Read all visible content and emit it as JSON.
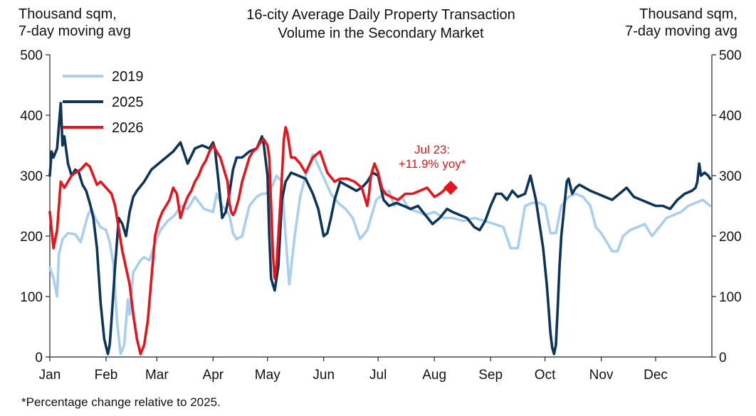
{
  "chart_data": {
    "type": "line",
    "title": "16-city Average Daily Property Transaction\nVolume in the Secondary Market",
    "ylabel_left": "Thousand sqm,\n7-day moving avg",
    "ylabel_right": "Thousand sqm,\n7-day moving avg",
    "ylim": [
      0,
      500
    ],
    "yticks": [
      0,
      100,
      200,
      300,
      400,
      500
    ],
    "xlim": [
      0,
      365
    ],
    "xticks": [
      {
        "label": "Jan",
        "day": 0
      },
      {
        "label": "Feb",
        "day": 31
      },
      {
        "label": "Mar",
        "day": 59
      },
      {
        "label": "Apr",
        "day": 90
      },
      {
        "label": "May",
        "day": 120
      },
      {
        "label": "Jun",
        "day": 151
      },
      {
        "label": "Jul",
        "day": 181
      },
      {
        "label": "Aug",
        "day": 212
      },
      {
        "label": "Sep",
        "day": 243
      },
      {
        "label": "Oct",
        "day": 273
      },
      {
        "label": "Nov",
        "day": 304
      },
      {
        "label": "Dec",
        "day": 334
      }
    ],
    "legend_position": "top-left",
    "grid": false,
    "series": [
      {
        "name": "2019",
        "color": "#a9cfee",
        "x": [
          0,
          2,
          4,
          5,
          7,
          10,
          14,
          17,
          21,
          23,
          25,
          28,
          31,
          33,
          35,
          37,
          39,
          41,
          43,
          44,
          46,
          50,
          52,
          55,
          58,
          61,
          65,
          69,
          72,
          76,
          80,
          85,
          90,
          92,
          95,
          99,
          101,
          103,
          106,
          110,
          114,
          117,
          119,
          121,
          123,
          125,
          128,
          130,
          132,
          135,
          138,
          141,
          145,
          149,
          152,
          155,
          159,
          163,
          167,
          171,
          175,
          180,
          184,
          187,
          190,
          194,
          198,
          203,
          207,
          212,
          217,
          222,
          228,
          234,
          240,
          245,
          250,
          254,
          258,
          262,
          266,
          270,
          273,
          276,
          279,
          282,
          286,
          290,
          294,
          298,
          301,
          304,
          307,
          310,
          313,
          316,
          320,
          324,
          328,
          332,
          336,
          340,
          344,
          348,
          352,
          356,
          360,
          364
        ],
        "y": [
          148,
          130,
          100,
          170,
          195,
          205,
          203,
          190,
          235,
          245,
          230,
          215,
          210,
          190,
          155,
          60,
          5,
          20,
          95,
          70,
          140,
          160,
          165,
          160,
          190,
          210,
          225,
          235,
          250,
          245,
          265,
          245,
          240,
          270,
          250,
          235,
          205,
          195,
          200,
          250,
          265,
          270,
          270,
          275,
          285,
          300,
          290,
          200,
          120,
          200,
          265,
          300,
          335,
          310,
          290,
          270,
          255,
          245,
          230,
          195,
          210,
          260,
          270,
          275,
          250,
          265,
          245,
          240,
          235,
          240,
          230,
          230,
          225,
          230,
          225,
          220,
          215,
          180,
          180,
          250,
          255,
          255,
          250,
          205,
          205,
          250,
          265,
          270,
          265,
          250,
          215,
          205,
          190,
          175,
          175,
          200,
          210,
          215,
          220,
          200,
          215,
          230,
          235,
          240,
          250,
          255,
          260,
          250
        ]
      },
      {
        "name": "2025",
        "color": "#0c3559",
        "x": [
          0,
          1,
          2,
          4,
          6,
          7,
          8,
          10,
          12,
          14,
          16,
          18,
          20,
          22,
          24,
          26,
          28,
          30,
          32,
          33,
          34,
          36,
          38,
          40,
          42,
          44,
          46,
          48,
          52,
          56,
          60,
          64,
          68,
          72,
          76,
          80,
          84,
          88,
          90,
          91,
          93,
          95,
          97,
          99,
          101,
          103,
          106,
          110,
          114,
          117,
          118,
          120,
          121,
          122,
          124,
          126,
          128,
          130,
          133,
          137,
          141,
          145,
          148,
          150,
          151,
          153,
          155,
          157,
          160,
          163,
          166,
          169,
          172,
          175,
          178,
          181,
          184,
          187,
          191,
          195,
          199,
          203,
          207,
          211,
          215,
          219,
          222,
          226,
          230,
          234,
          237,
          240,
          243,
          246,
          249,
          252,
          255,
          258,
          262,
          265,
          268,
          270,
          272,
          274,
          275,
          276,
          277,
          278,
          279,
          280,
          281,
          282,
          283,
          284,
          285,
          286,
          288,
          290,
          292,
          295,
          298,
          302,
          306,
          310,
          314,
          318,
          322,
          326,
          330,
          334,
          338,
          342,
          346,
          350,
          354,
          356,
          357,
          358,
          359,
          361,
          363,
          364
        ],
        "y": [
          300,
          340,
          330,
          345,
          420,
          350,
          365,
          320,
          300,
          310,
          305,
          285,
          275,
          255,
          230,
          180,
          90,
          30,
          5,
          20,
          60,
          150,
          230,
          220,
          200,
          240,
          265,
          275,
          290,
          310,
          320,
          330,
          340,
          355,
          320,
          345,
          350,
          345,
          355,
          345,
          290,
          230,
          240,
          270,
          310,
          330,
          330,
          340,
          345,
          365,
          350,
          300,
          200,
          130,
          110,
          150,
          260,
          290,
          305,
          300,
          295,
          270,
          245,
          215,
          200,
          205,
          230,
          260,
          290,
          285,
          280,
          275,
          280,
          290,
          305,
          300,
          260,
          250,
          255,
          250,
          245,
          250,
          235,
          220,
          230,
          245,
          240,
          235,
          230,
          215,
          210,
          225,
          250,
          270,
          270,
          260,
          275,
          265,
          270,
          300,
          260,
          220,
          180,
          120,
          80,
          40,
          15,
          5,
          20,
          80,
          150,
          200,
          230,
          260,
          290,
          295,
          270,
          280,
          285,
          280,
          275,
          270,
          265,
          260,
          270,
          280,
          265,
          260,
          255,
          250,
          250,
          245,
          260,
          270,
          275,
          280,
          290,
          320,
          300,
          305,
          300,
          295
        ]
      },
      {
        "name": "2026",
        "color": "#e8141b",
        "x": [
          0,
          2,
          4,
          6,
          8,
          10,
          12,
          14,
          17,
          20,
          22,
          24,
          26,
          28,
          31,
          34,
          36,
          40,
          44,
          46,
          48,
          50,
          52,
          54,
          56,
          58,
          60,
          62,
          64,
          66,
          68,
          70,
          72,
          74,
          76,
          78,
          80,
          82,
          84,
          86,
          88,
          90,
          92,
          94,
          96,
          98,
          99,
          100,
          101,
          102,
          104,
          106,
          108,
          110,
          112,
          114,
          116,
          118,
          120,
          121,
          122,
          123,
          124,
          125,
          126,
          127,
          128,
          129,
          130,
          131,
          133,
          135,
          138,
          141,
          145,
          149,
          153,
          157,
          160,
          164,
          168,
          172,
          175,
          176,
          177,
          178,
          179,
          181,
          183,
          185,
          188,
          192,
          196,
          200,
          204,
          208,
          212,
          215,
          217,
          218,
          220,
          221
        ],
        "y": [
          240,
          180,
          210,
          290,
          280,
          290,
          300,
          305,
          310,
          320,
          315,
          300,
          285,
          290,
          280,
          270,
          250,
          175,
          120,
          70,
          30,
          5,
          20,
          60,
          130,
          200,
          225,
          240,
          250,
          260,
          280,
          270,
          230,
          250,
          265,
          275,
          290,
          300,
          315,
          325,
          340,
          350,
          340,
          330,
          310,
          290,
          255,
          240,
          235,
          240,
          260,
          290,
          310,
          330,
          340,
          345,
          355,
          360,
          350,
          330,
          250,
          170,
          130,
          150,
          200,
          250,
          300,
          360,
          380,
          370,
          330,
          330,
          320,
          305,
          330,
          340,
          305,
          290,
          295,
          295,
          290,
          280,
          250,
          270,
          300,
          310,
          320,
          305,
          280,
          270,
          265,
          260,
          270,
          270,
          275,
          280,
          265,
          270,
          275,
          278,
          280,
          280
        ]
      }
    ],
    "annotation": {
      "text": "Jul 23:\n+11.9% yoy*",
      "x": 221,
      "y": 280,
      "marker": "diamond",
      "color": "#e8141b"
    },
    "footnote": "*Percentage change relative to 2025."
  }
}
